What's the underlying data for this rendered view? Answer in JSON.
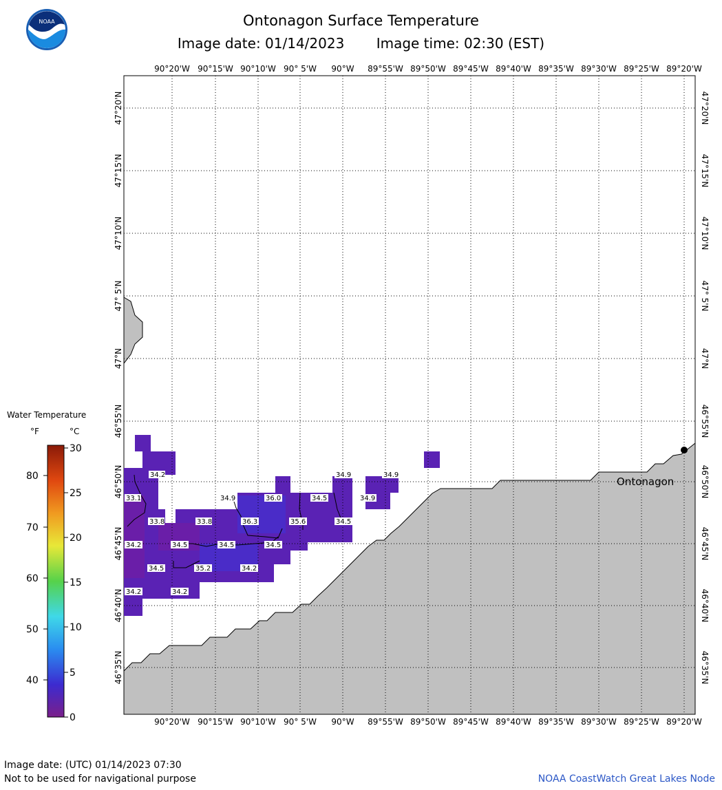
{
  "header": {
    "title": "Ontonagon Surface Temperature",
    "image_date": "Image date: 01/14/2023",
    "image_time": "Image time: 02:30 (EST)",
    "logo_text": "NOAA"
  },
  "map": {
    "lon_labels": [
      "90°20'W",
      "90°15'W",
      "90°10'W",
      "90° 5'W",
      "90°W",
      "89°55'W",
      "89°50'W",
      "89°45'W",
      "89°40'W",
      "89°35'W",
      "89°30'W",
      "89°25'W",
      "89°20'W"
    ],
    "lat_labels": [
      "47°20'N",
      "47°15'N",
      "47°10'N",
      "47° 5'N",
      "47°N",
      "46°55'N",
      "46°50'N",
      "46°45'N",
      "46°40'N",
      "46°35'N"
    ],
    "place_label": "Ontonagon",
    "land_color": "#c0c0c0",
    "temperature_labels": [
      "34.2",
      "33.1",
      "33.8",
      "33.8",
      "34.9",
      "36.0",
      "34.5",
      "36.3",
      "35.6",
      "34.5",
      "34.2",
      "34.5",
      "34.5",
      "34.5",
      "34.5",
      "35.2",
      "34.2",
      "34.2",
      "34.2",
      "34.9",
      "34.9",
      "34.9"
    ]
  },
  "legend": {
    "title": "Water Temperature",
    "unit_f": "°F",
    "unit_c": "°C",
    "f_ticks": [
      "80",
      "70",
      "60",
      "50",
      "40"
    ],
    "c_ticks": [
      "30",
      "25",
      "20",
      "15",
      "10",
      "5",
      "0"
    ],
    "colors": [
      "#7a1f8a",
      "#3c2bd0",
      "#2a8df0",
      "#3fd8e8",
      "#56d24a",
      "#e8e838",
      "#f09a20",
      "#e04810",
      "#8a1a08"
    ]
  },
  "footer": {
    "utc_date": "Image date: (UTC) 01/14/2023  07:30",
    "disclaimer": "Not to be used for navigational purpose",
    "credit": "NOAA CoastWatch Great Lakes Node"
  }
}
